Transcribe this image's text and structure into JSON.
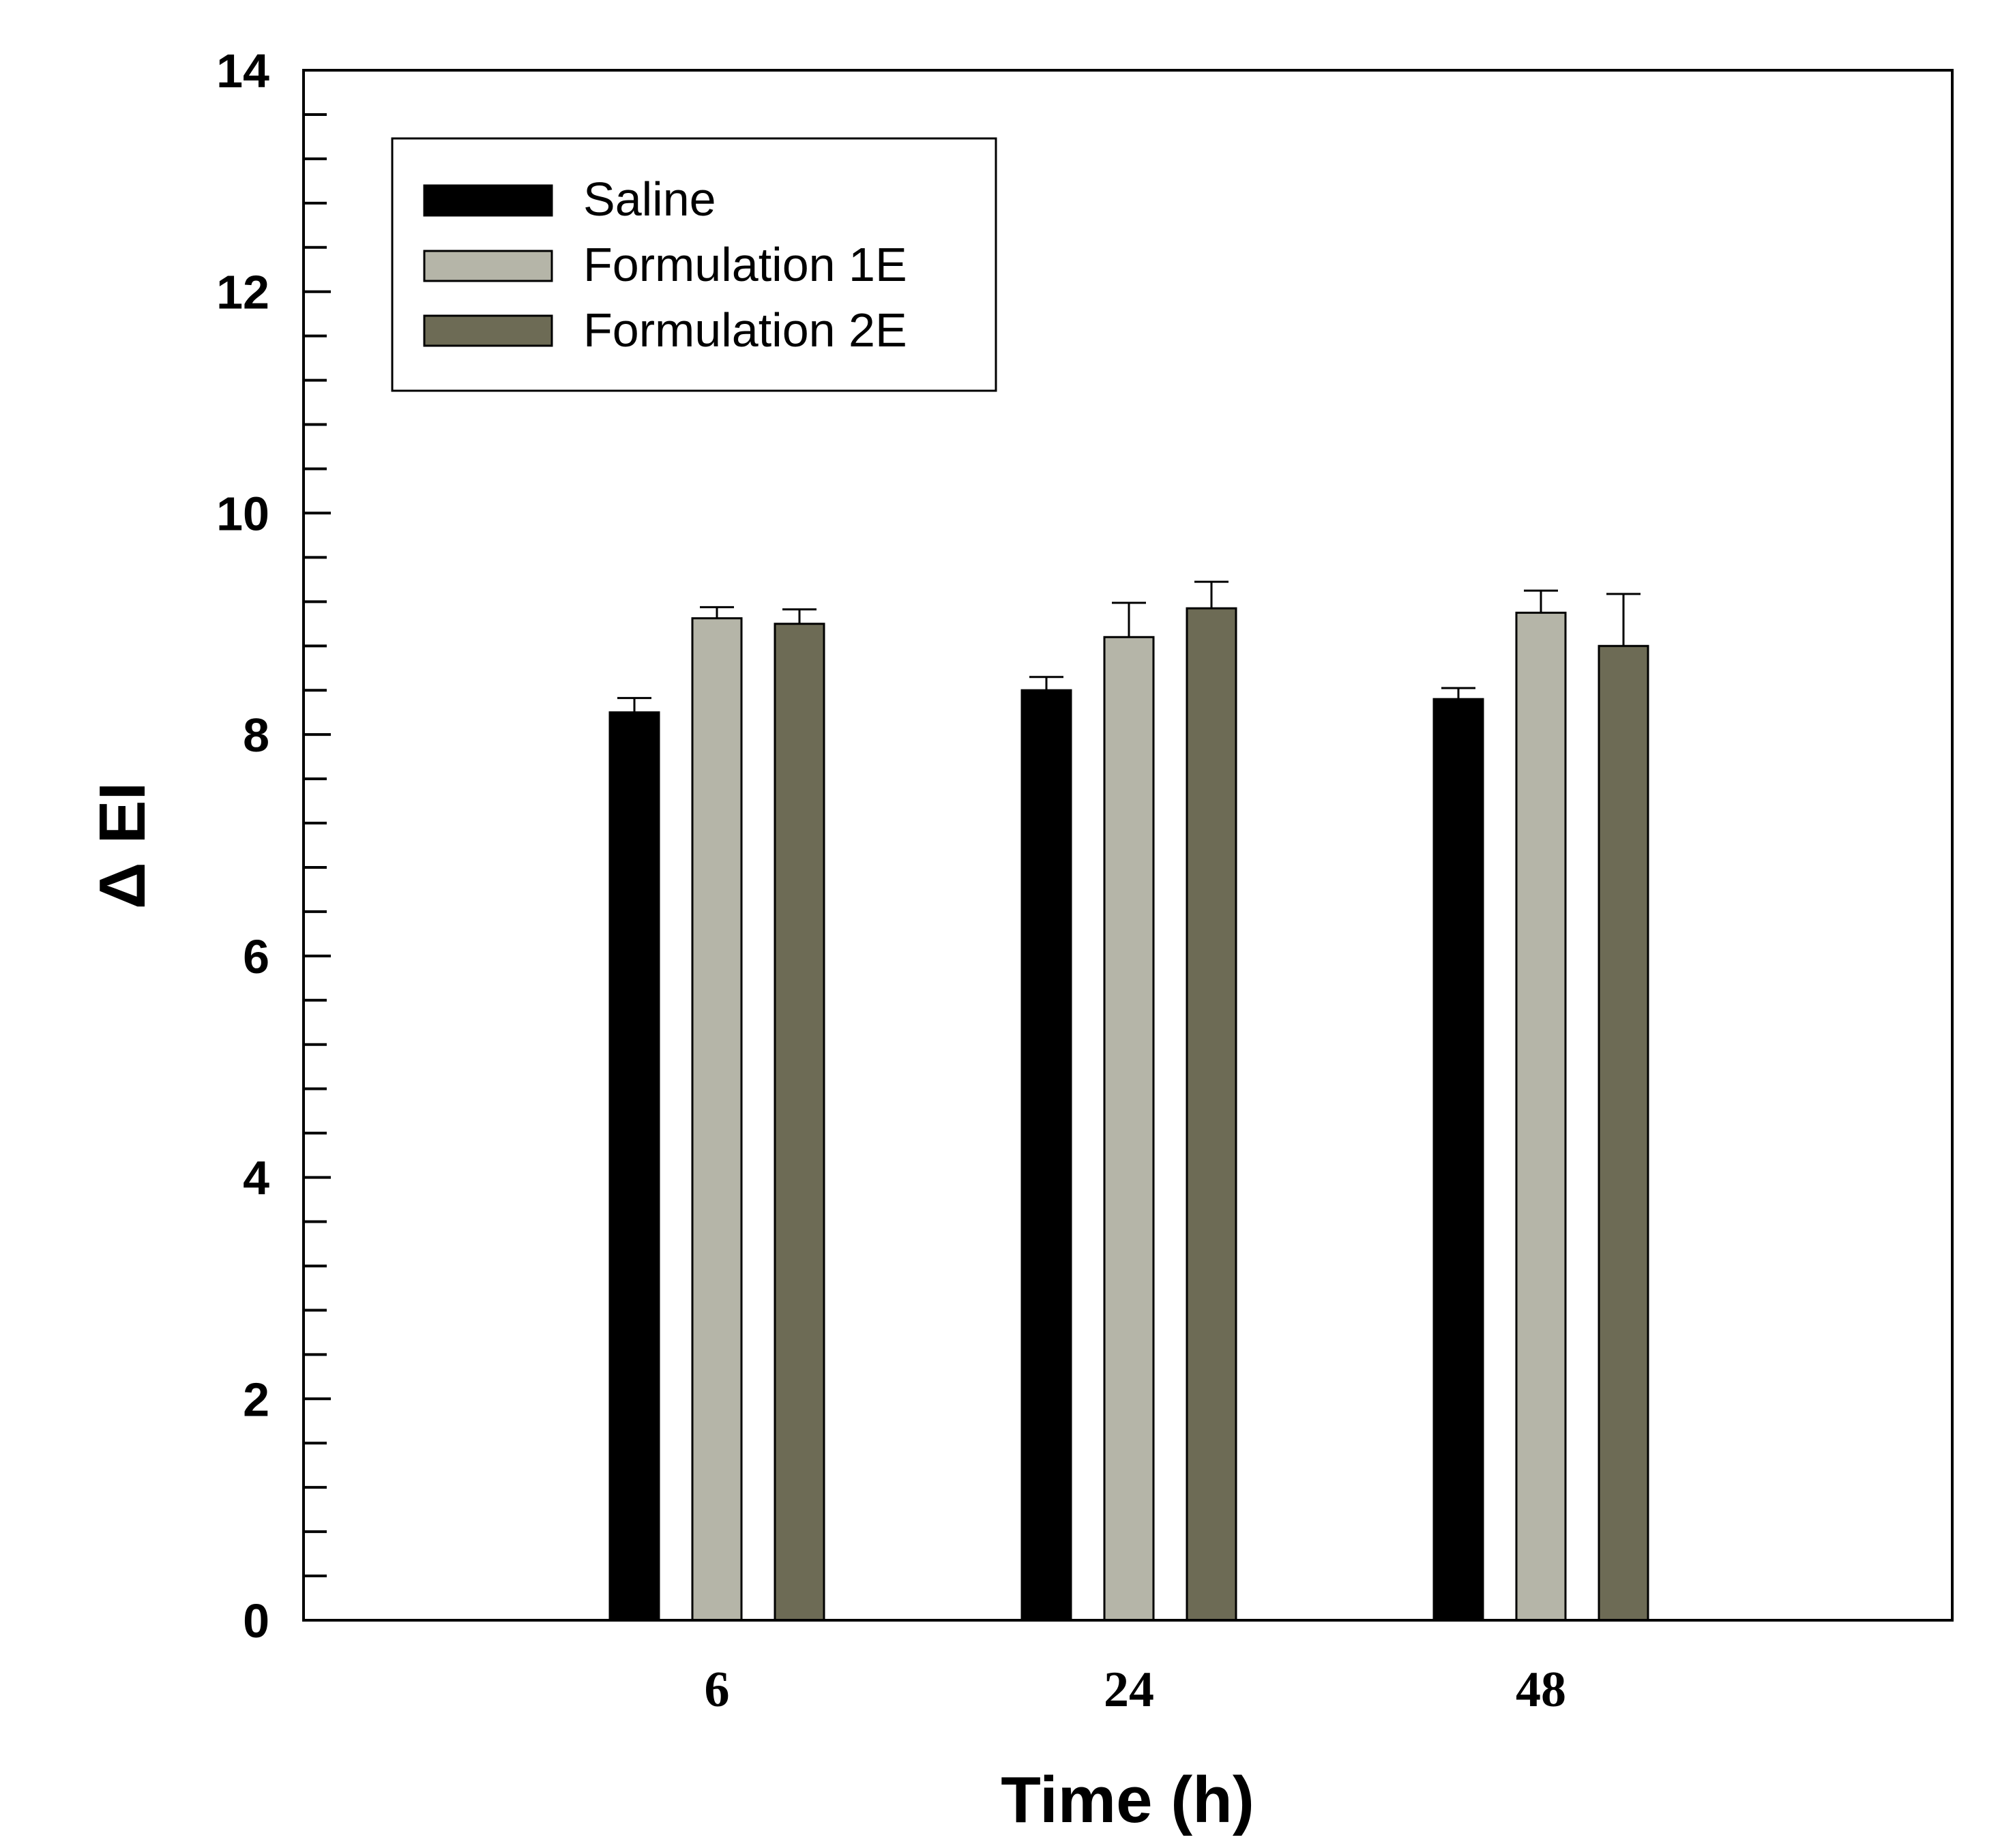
{
  "chart_data": {
    "type": "bar",
    "title": "",
    "xlabel": "Time (h)",
    "ylabel": "Δ EI",
    "categories": [
      "6",
      "24",
      "48"
    ],
    "ylim": [
      0,
      14
    ],
    "yticks": [
      "0",
      "2",
      "4",
      "6",
      "8",
      "10",
      "12",
      "14"
    ],
    "y_minor_step": 0.4,
    "grid": false,
    "legend_position": "top-left",
    "series": [
      {
        "name": "Saline",
        "color": "#000000",
        "values": [
          8.2,
          8.4,
          8.32
        ],
        "errors": [
          0.13,
          0.12,
          0.1
        ]
      },
      {
        "name": "Formulation 1E",
        "color": "#b5b5a8",
        "values": [
          9.05,
          8.88,
          9.1
        ],
        "errors": [
          0.1,
          0.31,
          0.2
        ]
      },
      {
        "name": "Formulation 2E",
        "color": "#6d6b55",
        "values": [
          9.0,
          9.14,
          8.8
        ],
        "errors": [
          0.13,
          0.24,
          0.47
        ]
      }
    ]
  }
}
